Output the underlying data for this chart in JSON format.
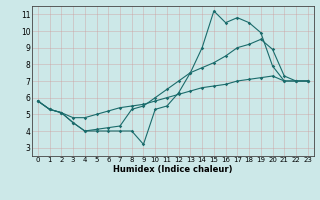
{
  "title": "",
  "xlabel": "Humidex (Indice chaleur)",
  "background_color": "#cce8e8",
  "grid_color": "#b0c8c8",
  "line_color": "#1a6b6b",
  "xlim": [
    -0.5,
    23.5
  ],
  "ylim": [
    2.5,
    11.5
  ],
  "xticks": [
    0,
    1,
    2,
    3,
    4,
    5,
    6,
    7,
    8,
    9,
    10,
    11,
    12,
    13,
    14,
    15,
    16,
    17,
    18,
    19,
    20,
    21,
    22,
    23
  ],
  "yticks": [
    3,
    4,
    5,
    6,
    7,
    8,
    9,
    10,
    11
  ],
  "line1_x": [
    0,
    1,
    2,
    3,
    4,
    5,
    6,
    7,
    8,
    9,
    10,
    11,
    12,
    13,
    14,
    15,
    16,
    17,
    18,
    19,
    20,
    21,
    22,
    23
  ],
  "line1_y": [
    5.8,
    5.3,
    5.1,
    4.5,
    4.0,
    4.0,
    4.0,
    4.0,
    4.0,
    3.2,
    5.3,
    5.5,
    6.3,
    7.5,
    9.0,
    11.2,
    10.5,
    10.8,
    10.5,
    9.9,
    7.9,
    7.0,
    7.0,
    7.0
  ],
  "line2_x": [
    0,
    1,
    2,
    3,
    4,
    5,
    6,
    7,
    8,
    9,
    10,
    11,
    12,
    13,
    14,
    15,
    16,
    17,
    18,
    19,
    20,
    21,
    22,
    23
  ],
  "line2_y": [
    5.8,
    5.3,
    5.1,
    4.5,
    4.0,
    4.1,
    4.2,
    4.3,
    5.3,
    5.5,
    6.0,
    6.5,
    7.0,
    7.5,
    7.8,
    8.1,
    8.5,
    9.0,
    9.2,
    9.5,
    8.9,
    7.3,
    7.0,
    7.0
  ],
  "line3_x": [
    0,
    1,
    2,
    3,
    4,
    5,
    6,
    7,
    8,
    9,
    10,
    11,
    12,
    13,
    14,
    15,
    16,
    17,
    18,
    19,
    20,
    21,
    22,
    23
  ],
  "line3_y": [
    5.8,
    5.3,
    5.1,
    4.8,
    4.8,
    5.0,
    5.2,
    5.4,
    5.5,
    5.6,
    5.8,
    6.0,
    6.2,
    6.4,
    6.6,
    6.7,
    6.8,
    7.0,
    7.1,
    7.2,
    7.3,
    7.0,
    7.0,
    7.0
  ],
  "xlabel_fontsize": 6,
  "tick_fontsize": 5,
  "marker_size": 1.8,
  "line_width": 0.8
}
